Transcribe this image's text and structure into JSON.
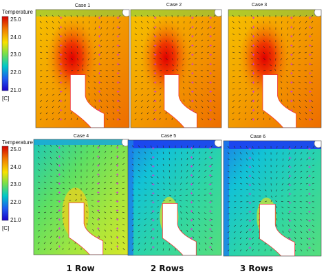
{
  "colorbar": {
    "title": "Temperature",
    "ticks": [
      "25.0",
      "24.0",
      "23.0",
      "22.0",
      "21.0"
    ],
    "unit": "[C]",
    "colors": [
      "#d40000",
      "#f07a00",
      "#f7e100",
      "#7ae04a",
      "#00c8c8",
      "#1e5af0",
      "#1a00c8"
    ]
  },
  "cases": [
    {
      "label": "Case 1",
      "profile": "warm"
    },
    {
      "label": "Case 2",
      "profile": "warm"
    },
    {
      "label": "Case 3",
      "profile": "warm"
    },
    {
      "label": "Case 4",
      "profile": "green"
    },
    {
      "label": "Case 5",
      "profile": "cool"
    },
    {
      "label": "Case 6",
      "profile": "cool"
    }
  ],
  "columns": [
    "1 Row",
    "2 Rows",
    "3 Rows"
  ]
}
